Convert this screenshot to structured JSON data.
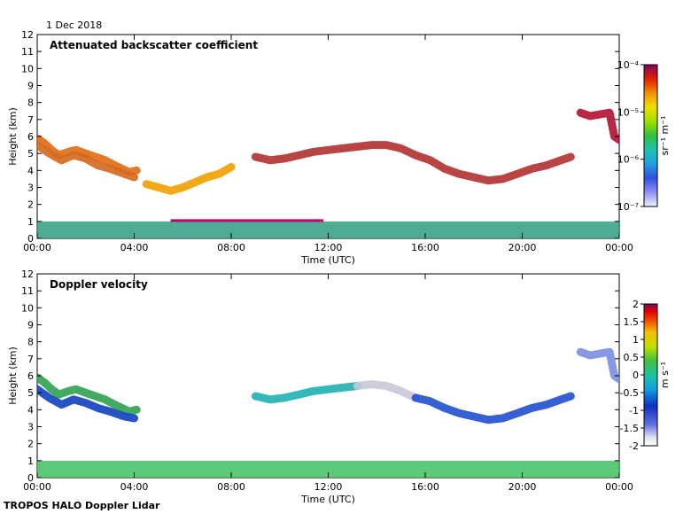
{
  "date_label": "1 Dec 2018",
  "footer": "TROPOS HALO Doppler Lidar",
  "chart_data": [
    {
      "type": "heatmap",
      "title": "Attenuated backscatter coefficient",
      "xlabel": "Time (UTC)",
      "ylabel": "Height (km)",
      "xlim": [
        0,
        24
      ],
      "ylim": [
        0,
        12
      ],
      "x_ticks": [
        "00:00",
        "04:00",
        "08:00",
        "12:00",
        "16:00",
        "20:00",
        "00:00"
      ],
      "y_ticks": [
        "0",
        "1",
        "2",
        "3",
        "4",
        "5",
        "6",
        "7",
        "8",
        "9",
        "10",
        "11",
        "12"
      ],
      "colorbar": {
        "scale": "log",
        "unit": "sr⁻¹ m⁻¹",
        "range": [
          1e-07,
          0.0001
        ],
        "tick_labels": [
          "10⁻⁴",
          "10⁻⁵",
          "10⁻⁶",
          "10⁻⁷"
        ]
      },
      "features": [
        {
          "kind": "cloud",
          "color": "#e06a12",
          "points": [
            [
              0,
              5.9
            ],
            [
              0.3,
              5.6
            ],
            [
              0.6,
              5.2
            ],
            [
              0.9,
              4.9
            ],
            [
              1.3,
              5.1
            ],
            [
              1.6,
              5.2
            ],
            [
              2.0,
              5.0
            ],
            [
              2.4,
              4.8
            ],
            [
              2.8,
              4.6
            ],
            [
              3.2,
              4.3
            ],
            [
              3.5,
              4.1
            ],
            [
              3.8,
              3.9
            ],
            [
              4.1,
              4.0
            ]
          ]
        },
        {
          "kind": "cloud",
          "color": "#d2691e",
          "points": [
            [
              0,
              5.5
            ],
            [
              0.5,
              5.0
            ],
            [
              1.0,
              4.6
            ],
            [
              1.5,
              4.9
            ],
            [
              2.0,
              4.7
            ],
            [
              2.5,
              4.3
            ],
            [
              3.0,
              4.1
            ],
            [
              3.6,
              3.8
            ],
            [
              4.0,
              3.6
            ]
          ]
        },
        {
          "kind": "cloud",
          "color": "#f0a000",
          "points": [
            [
              4.5,
              3.2
            ],
            [
              5.0,
              3.0
            ],
            [
              5.5,
              2.8
            ],
            [
              6.0,
              3.0
            ],
            [
              6.5,
              3.3
            ],
            [
              7.0,
              3.6
            ],
            [
              7.5,
              3.8
            ],
            [
              8.0,
              4.2
            ]
          ]
        },
        {
          "kind": "cloud",
          "color": "#b03030",
          "points": [
            [
              9.0,
              4.8
            ],
            [
              9.6,
              4.6
            ],
            [
              10.2,
              4.7
            ],
            [
              10.8,
              4.9
            ],
            [
              11.4,
              5.1
            ],
            [
              12.0,
              5.2
            ],
            [
              12.6,
              5.3
            ],
            [
              13.2,
              5.4
            ],
            [
              13.8,
              5.5
            ],
            [
              14.4,
              5.5
            ],
            [
              15.0,
              5.3
            ],
            [
              15.6,
              4.9
            ],
            [
              16.2,
              4.6
            ],
            [
              16.8,
              4.1
            ],
            [
              17.4,
              3.8
            ],
            [
              18.0,
              3.6
            ],
            [
              18.6,
              3.4
            ],
            [
              19.2,
              3.5
            ],
            [
              19.8,
              3.8
            ],
            [
              20.4,
              4.1
            ],
            [
              21.0,
              4.3
            ],
            [
              21.6,
              4.6
            ],
            [
              22.0,
              4.8
            ]
          ]
        },
        {
          "kind": "cloud",
          "color": "#b01030",
          "points": [
            [
              22.4,
              7.4
            ],
            [
              22.8,
              7.2
            ],
            [
              23.2,
              7.3
            ],
            [
              23.6,
              7.4
            ],
            [
              23.8,
              6.0
            ],
            [
              24.0,
              5.8
            ]
          ]
        },
        {
          "kind": "boundary_layer",
          "color": "#2e9e80",
          "range": [
            0,
            24
          ],
          "top": 1.0
        },
        {
          "kind": "aerosol_line",
          "color": "#c00070",
          "range": [
            5.5,
            11.8
          ],
          "height": 1.05
        }
      ]
    },
    {
      "type": "heatmap",
      "title": "Doppler velocity",
      "xlabel": "Time (UTC)",
      "ylabel": "Height (km)",
      "xlim": [
        0,
        24
      ],
      "ylim": [
        0,
        12
      ],
      "x_ticks": [
        "00:00",
        "04:00",
        "08:00",
        "12:00",
        "16:00",
        "20:00",
        "00:00"
      ],
      "y_ticks": [
        "0",
        "1",
        "2",
        "3",
        "4",
        "5",
        "6",
        "7",
        "8",
        "9",
        "10",
        "11",
        "12"
      ],
      "colorbar": {
        "scale": "linear",
        "unit": "m s⁻¹",
        "range": [
          -2,
          2
        ],
        "tick_labels": [
          "2",
          "1.5",
          "1",
          "0.5",
          "0",
          "-0.5",
          "-1",
          "-1.5",
          "-2"
        ]
      },
      "features": [
        {
          "kind": "cloud",
          "color": "#30a050",
          "points": [
            [
              0,
              5.9
            ],
            [
              0.3,
              5.6
            ],
            [
              0.6,
              5.2
            ],
            [
              0.9,
              4.9
            ],
            [
              1.3,
              5.1
            ],
            [
              1.6,
              5.2
            ],
            [
              2.0,
              5.0
            ],
            [
              2.4,
              4.8
            ],
            [
              2.8,
              4.6
            ],
            [
              3.2,
              4.3
            ],
            [
              3.5,
              4.1
            ],
            [
              3.8,
              3.9
            ],
            [
              4.1,
              4.0
            ]
          ]
        },
        {
          "kind": "cloud",
          "color": "#1040c0",
          "points": [
            [
              0,
              5.2
            ],
            [
              0.5,
              4.7
            ],
            [
              1.0,
              4.3
            ],
            [
              1.5,
              4.6
            ],
            [
              2.0,
              4.4
            ],
            [
              2.5,
              4.1
            ],
            [
              3.0,
              3.9
            ],
            [
              3.6,
              3.6
            ],
            [
              4.0,
              3.5
            ]
          ]
        },
        {
          "kind": "cloud",
          "color": "#20b0b0",
          "points": [
            [
              9.0,
              4.8
            ],
            [
              9.6,
              4.6
            ],
            [
              10.2,
              4.7
            ],
            [
              10.8,
              4.9
            ],
            [
              11.4,
              5.1
            ],
            [
              12.0,
              5.2
            ],
            [
              12.6,
              5.3
            ],
            [
              13.2,
              5.4
            ]
          ]
        },
        {
          "kind": "cloud",
          "color": "#c8c8d8",
          "points": [
            [
              13.2,
              5.4
            ],
            [
              13.8,
              5.5
            ],
            [
              14.4,
              5.4
            ],
            [
              15.0,
              5.1
            ],
            [
              15.6,
              4.7
            ]
          ]
        },
        {
          "kind": "cloud",
          "color": "#2050d0",
          "points": [
            [
              15.6,
              4.7
            ],
            [
              16.2,
              4.5
            ],
            [
              16.8,
              4.1
            ],
            [
              17.4,
              3.8
            ],
            [
              18.0,
              3.6
            ],
            [
              18.6,
              3.4
            ],
            [
              19.2,
              3.5
            ],
            [
              19.8,
              3.8
            ],
            [
              20.4,
              4.1
            ],
            [
              21.0,
              4.3
            ],
            [
              21.6,
              4.6
            ],
            [
              22.0,
              4.8
            ]
          ]
        },
        {
          "kind": "cloud",
          "color": "#7a8ee0",
          "points": [
            [
              22.4,
              7.4
            ],
            [
              22.8,
              7.2
            ],
            [
              23.2,
              7.3
            ],
            [
              23.6,
              7.4
            ],
            [
              23.8,
              6.0
            ],
            [
              24.0,
              5.8
            ]
          ]
        },
        {
          "kind": "boundary_layer",
          "color": "#40c060",
          "range": [
            0,
            24
          ],
          "top": 1.0
        }
      ]
    }
  ]
}
